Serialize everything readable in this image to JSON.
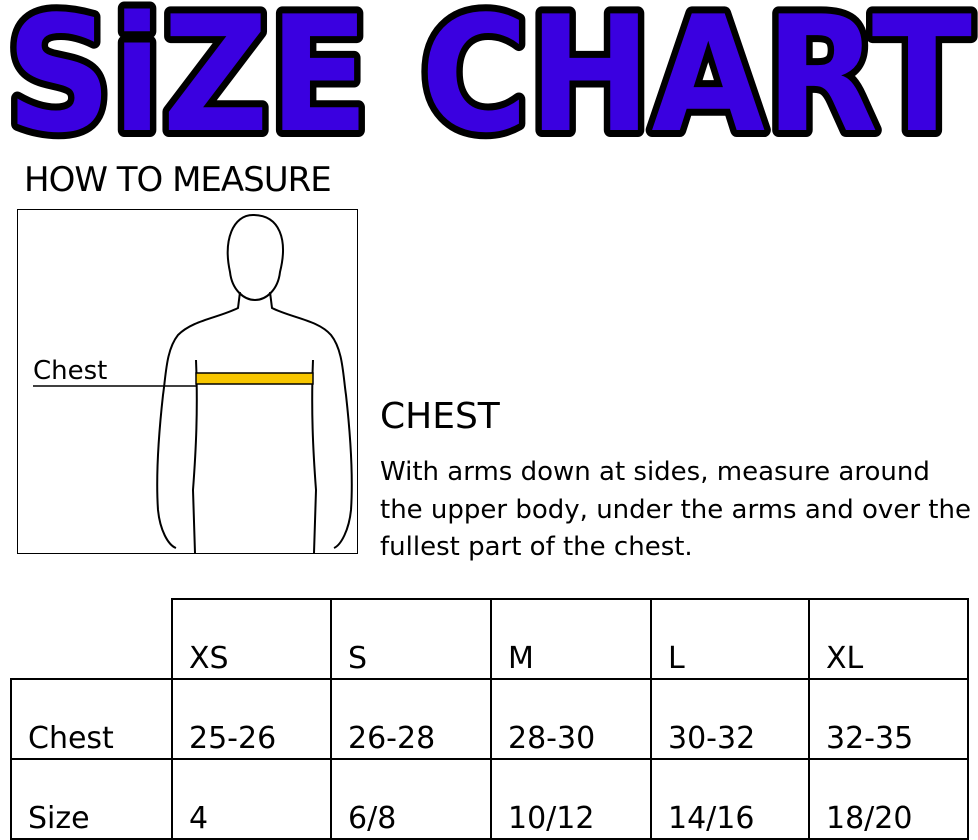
{
  "title": "SiZE CHART",
  "title_color": "#3a00e0",
  "how_to_measure": "HOW TO MEASURE",
  "figure": {
    "label": "Chest",
    "tape_color": "#f7c600"
  },
  "chest": {
    "heading": "CHEST",
    "description": "With arms down at sides, measure around the upper body, under the arms and over the fullest part of the chest."
  },
  "table": {
    "columns": [
      "XS",
      "S",
      "M",
      "L",
      "XL"
    ],
    "rows": [
      {
        "label": "Chest",
        "values": [
          "25-26",
          "26-28",
          "28-30",
          "30-32",
          "32-35"
        ]
      },
      {
        "label": "Size",
        "values": [
          "4",
          "6/8",
          "10/12",
          "14/16",
          "18/20"
        ]
      }
    ]
  }
}
